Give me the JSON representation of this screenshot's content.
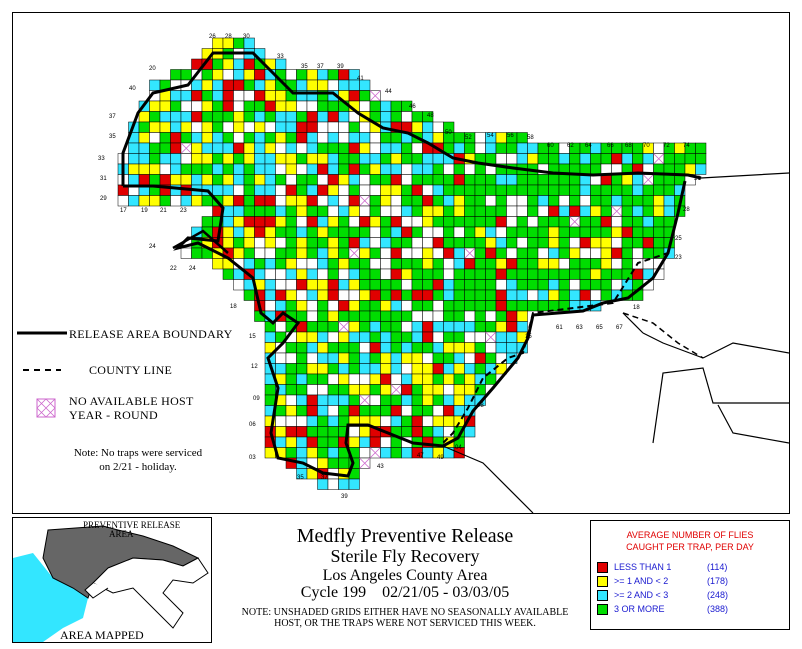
{
  "grid_labels": {
    "top": [
      "26",
      "28",
      "30",
      "33",
      "35",
      "37",
      "39",
      "41",
      "44",
      "46",
      "48",
      "50",
      "52",
      "54",
      "56",
      "58",
      "60",
      "62",
      "64",
      "66",
      "68",
      "70",
      "72",
      "74"
    ],
    "left": [
      "20",
      "40",
      "37",
      "35",
      "33",
      "31",
      "29"
    ],
    "bottom": [
      "17",
      "19",
      "21",
      "23"
    ],
    "other": [
      "24",
      "22",
      "24",
      "18",
      "15",
      "12",
      "09",
      "06",
      "03",
      "35",
      "37",
      "39",
      "43",
      "47",
      "49",
      "04",
      "08",
      "15",
      "18",
      "61",
      "63",
      "65",
      "67",
      "23",
      "25",
      "28",
      "31"
    ]
  },
  "legend": {
    "boundary": "RELEASE AREA BOUNDARY",
    "county": "COUNTY LINE",
    "nohost_line1": "NO AVAILABLE HOST",
    "nohost_line2": "YEAR - ROUND"
  },
  "note": {
    "line1": "Note: No traps were serviced",
    "line2": "on 2/21 - holiday."
  },
  "inset": {
    "label_top": "PREVENTIVE RELEASE",
    "label_top2": "AREA",
    "caption": "AREA MAPPED"
  },
  "title": {
    "line1": "Medfly Preventive Release",
    "line2": "Sterile Fly Recovery",
    "line3": "Los Angeles County Area",
    "line4": "Cycle 199    02/21/05 - 03/03/05",
    "note1": "NOTE: UNSHADED GRIDS EITHER HAVE NO SEASONALLY AVAILABLE",
    "note2": "HOST, OR THE TRAPS WERE NOT SERVICED THIS WEEK."
  },
  "avg_legend": {
    "title1": "AVERAGE NUMBER OF FLIES",
    "title2": "CAUGHT PER TRAP, PER DAY",
    "items": [
      {
        "label": "LESS THAN 1",
        "count": "(114)",
        "color": "#e00000"
      },
      {
        "label": ">= 1 AND < 2",
        "count": "(178)",
        "color": "#ffff00"
      },
      {
        "label": ">= 2 AND < 3",
        "count": "(248)",
        "color": "#33e6ff"
      },
      {
        "label": "3 OR MORE",
        "count": "(388)",
        "color": "#00dd00"
      }
    ]
  },
  "colors": {
    "red": "#e00000",
    "yellow": "#ffff00",
    "cyan": "#33e6ff",
    "green": "#00dd00",
    "nohost": "#cc66cc"
  }
}
